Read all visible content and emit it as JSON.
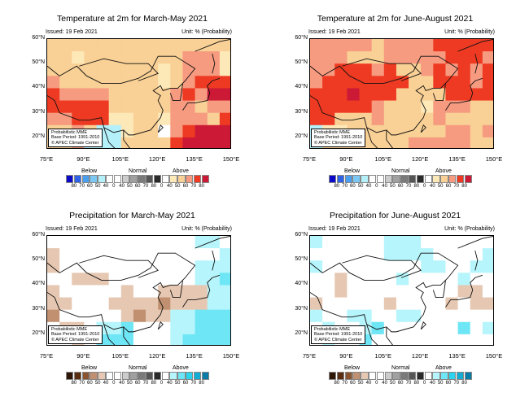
{
  "issued": "Issued: 19 Feb 2021",
  "unit": "Unit: % (Probability)",
  "lat_labels": [
    "60°N",
    "50°N",
    "40°N",
    "30°N",
    "20°N"
  ],
  "lon_labels": [
    "75°E",
    "90°E",
    "105°E",
    "120°E",
    "135°E",
    "150°E"
  ],
  "info_box": [
    "Probabilistic MME",
    "Base Period: 1991-2010",
    "© APEC Climate Center"
  ],
  "legend_headings": [
    "Below",
    "Normal",
    "Above"
  ],
  "legend_labels": [
    "80",
    "70",
    "60",
    "50",
    "40",
    "0",
    "40",
    "50",
    "60",
    "70",
    "80",
    "0",
    "40",
    "50",
    "60",
    "70",
    "80"
  ],
  "legend_colors": {
    "temperature": [
      "#0a0ac8",
      "#2e63e8",
      "#4aa0f0",
      "#7cc8f4",
      "#b4f0fa",
      "#ffffff",
      "#ffffff",
      "#cccccc",
      "#a0a0a0",
      "#7a7a7a",
      "#555555",
      "#2a2a2a",
      "#ffffff",
      "#fde8b8",
      "#f9d095",
      "#f69a80",
      "#ee3a22",
      "#cc1a36"
    ],
    "precipitation": [
      "#2e1606",
      "#5a2c10",
      "#8a5430",
      "#c09070",
      "#e6c8b2",
      "#ffffff",
      "#ffffff",
      "#cccccc",
      "#a0a0a0",
      "#7a7a7a",
      "#555555",
      "#2a2a2a",
      "#ffffff",
      "#b6f5fb",
      "#6ee6f5",
      "#2ad4ee",
      "#14acd2",
      "#0a7ca8"
    ]
  },
  "category_colors": {
    "w": "#ffffff",
    "n": "#b4f0fa",
    "a": "#fde8b8",
    "b": "#f9d095",
    "c": "#f69a80",
    "d": "#ee3a22",
    "e": "#cc1a36",
    "p": "#e6c8b2",
    "q": "#c09070",
    "s": "#b6f5fb",
    "t": "#6ee6f5"
  },
  "panels": [
    {
      "title": "Temperature at 2m for March-May 2021",
      "variable": "temperature",
      "grid": [
        "bbbbbbbbbbbbbbb",
        "bbabbbbbbbbccca",
        "bbbbbbbbbabccca",
        "cbbbbbbbbabcddd",
        "dccccbbbbbcdcee",
        "dddddbbbbbccbcc",
        "ccdddaabbacccbd",
        "bbcbnnabbwcdeee",
        "bbcnnnbbbbdeeee"
      ]
    },
    {
      "title": "Temperature at 2m for June-August 2021",
      "variable": "temperature",
      "grid": [
        "cccccbccccddddd",
        "cccbbbcccccdddc",
        "ccdddcdbbcdcdcd",
        "cdddddddbbdddcd",
        "dddedddbbbbdddd",
        "dddddcbbbacccbb",
        "ddbbbcbbbbcbbbb",
        "naabbbbbbbbccbc",
        "nbbbbbbbcccccbb"
      ]
    },
    {
      "title": "Precipitation for March-May 2021",
      "variable": "precipitation",
      "grid": [
        "wwwwwwwwwwwwssw",
        "pwwwwwwwwwwwwws",
        "pwwwwwwwwwwwsss",
        "wwpppwwwwwwwsst",
        "pwwwwwpwwppppss",
        "ppwwwppppqpppss",
        "qwwwwwpqppssttt",
        "wppwsstwwwsstt t",
        "wwpwtttwwwsttt t"
      ]
    },
    {
      "title": "Precipitation for June-August 2021",
      "variable": "precipitation",
      "grid": [
        "swwwwwssswwwwww",
        "wwwwwwsssswwwws",
        "swwwwwwwwsswwss",
        "wwpwwwwswwwwsww",
        "wwpwwwwwwwwwppw",
        "pwwwwwpwwwwpwpp",
        "swwsswwsswwwwww",
        "wswwstwwwwwwtws",
        "wswwtwwwwwwwwww"
      ]
    }
  ]
}
